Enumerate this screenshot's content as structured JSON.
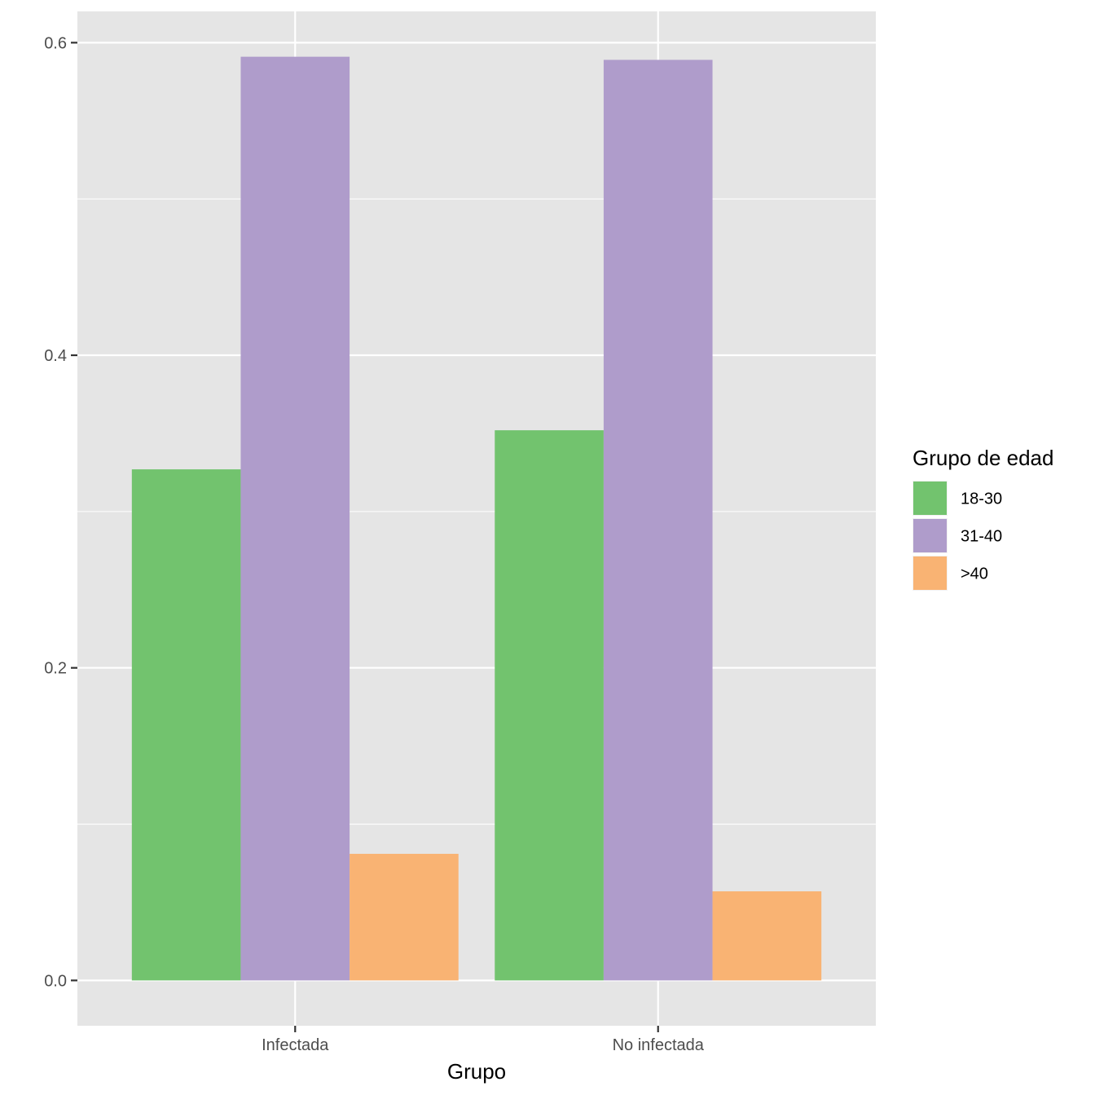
{
  "chart_data": {
    "type": "bar",
    "categories": [
      "Infectada",
      "No infectada"
    ],
    "series": [
      {
        "name": "18-30",
        "values": [
          0.327,
          0.352
        ],
        "color": "#72C36E"
      },
      {
        "name": "31-40",
        "values": [
          0.591,
          0.589
        ],
        "color": "#AF9CCB"
      },
      {
        "name": ">40",
        "values": [
          0.081,
          0.057
        ],
        "color": "#F9B373"
      }
    ],
    "xlabel": "Grupo",
    "ylabel": "",
    "ylim": [
      -0.029,
      0.62
    ],
    "yticks": [
      0.0,
      0.2,
      0.4,
      0.6
    ],
    "ytick_labels": [
      "0.0",
      "0.2",
      "0.4",
      "0.6"
    ],
    "legend_title": "Grupo de edad",
    "legend_position": "right",
    "grid": true,
    "panel_background": "#E5E5E5",
    "grid_color": "#FFFFFF"
  }
}
